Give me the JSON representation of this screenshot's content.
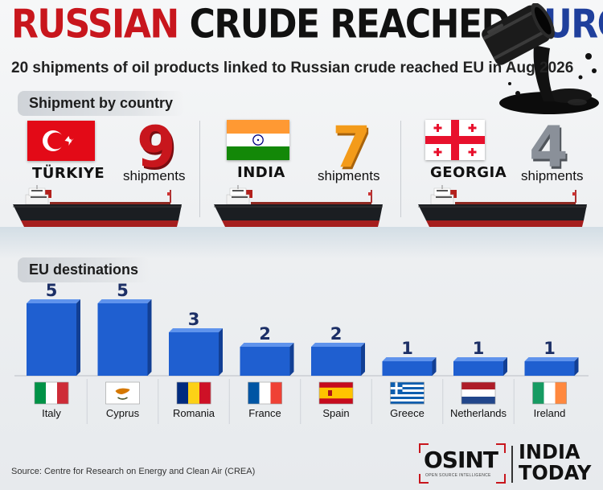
{
  "header": {
    "title_part1": "RUSSIAN",
    "title_part2": "CRUDE REACHED",
    "title_part3": "EUROPE",
    "subtitle": "20 shipments of oil products linked to Russian crude reached EU in Aug 2026"
  },
  "sections": {
    "shipment_by_country": "Shipment by country",
    "eu_destinations": "EU destinations"
  },
  "origins": [
    {
      "country": "TÜRKIYE",
      "count": "9",
      "unit": "shipments",
      "color": "#c8161d"
    },
    {
      "country": "INDIA",
      "count": "7",
      "unit": "shipments",
      "color": "#f39b1a"
    },
    {
      "country": "GEORGIA",
      "count": "4",
      "unit": "shipments",
      "color": "#8a9099"
    }
  ],
  "chart_data": {
    "type": "bar",
    "categories": [
      "Italy",
      "Cyprus",
      "Romania",
      "France",
      "Spain",
      "Greece",
      "Netherlands",
      "Ireland"
    ],
    "values": [
      5,
      5,
      3,
      2,
      2,
      1,
      1,
      1
    ],
    "title": "EU destinations",
    "xlabel": "",
    "ylabel": "",
    "ylim": [
      0,
      5
    ],
    "bar_color": "#1f5fd0",
    "grid": false
  },
  "footer": {
    "source": "Source: Centre for Research on Energy and Clean Air (CREA)",
    "osint_logo": "OSINT",
    "osint_tagline": "OPEN SOURCE INTELLIGENCE",
    "brand": "INDIA TODAY"
  }
}
